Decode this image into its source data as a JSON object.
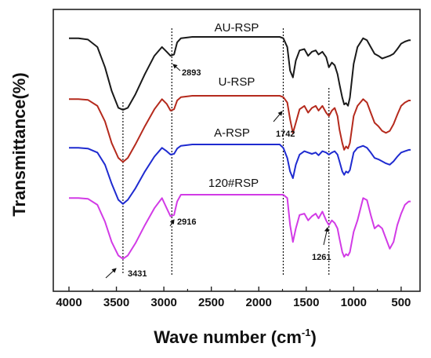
{
  "chart_data": {
    "type": "line",
    "xlabel": "Wave number (cm",
    "xlabel_sup": "-1",
    "xlabel_close": ")",
    "ylabel": "Transmittance(%)",
    "xlim": [
      4000,
      400
    ],
    "xticks": [
      "4000",
      "3500",
      "3000",
      "2500",
      "2000",
      "1500",
      "1000",
      "500"
    ],
    "x_reversed": true,
    "grid": false,
    "y_tick_labels": false,
    "series": [
      {
        "name": "AU-RSP",
        "color": "#d23be6",
        "offset": 3,
        "x": [
          4000,
          3900,
          3800,
          3700,
          3620,
          3550,
          3480,
          3431,
          3380,
          3300,
          3200,
          3100,
          3020,
          2970,
          2930,
          2893,
          2860,
          2820,
          2700,
          2400,
          2100,
          1900,
          1780,
          1742,
          1700,
          1670,
          1640,
          1610,
          1570,
          1520,
          1480,
          1440,
          1400,
          1370,
          1330,
          1290,
          1261,
          1230,
          1200,
          1170,
          1150,
          1120,
          1100,
          1080,
          1060,
          1040,
          1020,
          1000,
          960,
          900,
          860,
          820,
          780,
          740,
          700,
          660,
          620,
          580,
          540,
          500,
          460,
          420,
          400
        ],
        "values": [
          0.95,
          0.95,
          0.94,
          0.85,
          0.6,
          0.3,
          0.1,
          0.05,
          0.1,
          0.28,
          0.55,
          0.8,
          0.95,
          0.8,
          0.68,
          0.7,
          0.9,
          1.0,
          1.0,
          1.0,
          1.0,
          1.0,
          1.0,
          1.0,
          0.95,
          0.55,
          0.3,
          0.5,
          0.7,
          0.72,
          0.62,
          0.68,
          0.72,
          0.65,
          0.75,
          0.62,
          0.55,
          0.62,
          0.58,
          0.5,
          0.35,
          0.15,
          0.08,
          0.12,
          0.1,
          0.15,
          0.3,
          0.45,
          0.62,
          0.95,
          0.92,
          0.7,
          0.5,
          0.55,
          0.5,
          0.35,
          0.2,
          0.3,
          0.55,
          0.72,
          0.85,
          0.9,
          0.9
        ]
      },
      {
        "name": "U-RSP",
        "color": "#1f2bd0",
        "offset": 2,
        "x": [
          4000,
          3900,
          3800,
          3700,
          3620,
          3550,
          3480,
          3431,
          3380,
          3300,
          3200,
          3100,
          3020,
          2970,
          2930,
          2893,
          2860,
          2820,
          2700,
          2400,
          2100,
          1900,
          1780,
          1742,
          1700,
          1670,
          1640,
          1610,
          1570,
          1520,
          1480,
          1440,
          1400,
          1370,
          1330,
          1290,
          1261,
          1230,
          1200,
          1170,
          1150,
          1120,
          1100,
          1080,
          1060,
          1040,
          1020,
          1000,
          960,
          900,
          860,
          820,
          780,
          740,
          700,
          660,
          620,
          580,
          540,
          500,
          460,
          420,
          400
        ],
        "values": [
          0.95,
          0.95,
          0.94,
          0.88,
          0.7,
          0.42,
          0.18,
          0.12,
          0.18,
          0.35,
          0.6,
          0.82,
          0.95,
          0.9,
          0.85,
          0.86,
          0.94,
          0.98,
          1.0,
          1.0,
          1.0,
          1.0,
          1.0,
          0.95,
          0.8,
          0.6,
          0.5,
          0.7,
          0.85,
          0.9,
          0.88,
          0.86,
          0.88,
          0.84,
          0.9,
          0.88,
          0.85,
          0.88,
          0.9,
          0.85,
          0.75,
          0.6,
          0.55,
          0.6,
          0.58,
          0.62,
          0.75,
          0.88,
          0.95,
          0.98,
          0.95,
          0.88,
          0.8,
          0.78,
          0.75,
          0.72,
          0.7,
          0.75,
          0.82,
          0.88,
          0.9,
          0.92,
          0.92
        ]
      },
      {
        "name": "A-RSP",
        "color": "#b52a1d",
        "offset": 1,
        "x": [
          4000,
          3900,
          3800,
          3700,
          3620,
          3550,
          3480,
          3431,
          3380,
          3300,
          3200,
          3100,
          3020,
          2970,
          2930,
          2893,
          2860,
          2820,
          2700,
          2400,
          2100,
          1900,
          1780,
          1742,
          1700,
          1670,
          1640,
          1610,
          1570,
          1520,
          1480,
          1440,
          1400,
          1370,
          1330,
          1290,
          1261,
          1230,
          1200,
          1170,
          1150,
          1120,
          1100,
          1080,
          1060,
          1040,
          1020,
          1000,
          960,
          900,
          860,
          820,
          780,
          740,
          700,
          660,
          620,
          580,
          540,
          500,
          460,
          420,
          400
        ],
        "values": [
          0.95,
          0.95,
          0.94,
          0.85,
          0.62,
          0.3,
          0.08,
          0.02,
          0.08,
          0.28,
          0.55,
          0.8,
          0.95,
          0.88,
          0.78,
          0.8,
          0.93,
          0.98,
          1.0,
          1.0,
          1.0,
          1.0,
          1.0,
          0.98,
          0.9,
          0.65,
          0.45,
          0.6,
          0.8,
          0.85,
          0.75,
          0.82,
          0.85,
          0.78,
          0.85,
          0.75,
          0.7,
          0.78,
          0.82,
          0.7,
          0.5,
          0.3,
          0.2,
          0.25,
          0.22,
          0.3,
          0.5,
          0.7,
          0.85,
          0.95,
          0.9,
          0.75,
          0.6,
          0.55,
          0.48,
          0.45,
          0.48,
          0.58,
          0.72,
          0.85,
          0.9,
          0.93,
          0.93
        ]
      },
      {
        "name": "120#RSP",
        "color": "#1a1a1a",
        "offset": 0,
        "x": [
          4000,
          3900,
          3800,
          3700,
          3620,
          3550,
          3480,
          3431,
          3380,
          3300,
          3200,
          3100,
          3020,
          2970,
          2930,
          2893,
          2860,
          2820,
          2700,
          2400,
          2100,
          1900,
          1780,
          1742,
          1700,
          1670,
          1640,
          1610,
          1570,
          1520,
          1480,
          1440,
          1400,
          1370,
          1330,
          1290,
          1261,
          1230,
          1200,
          1170,
          1150,
          1120,
          1100,
          1080,
          1060,
          1040,
          1020,
          1000,
          960,
          900,
          860,
          820,
          780,
          740,
          700,
          660,
          620,
          580,
          540,
          500,
          460,
          420,
          400
        ],
        "values": [
          0.98,
          0.98,
          0.96,
          0.85,
          0.55,
          0.2,
          -0.05,
          -0.08,
          -0.05,
          0.15,
          0.45,
          0.72,
          0.85,
          0.78,
          0.72,
          0.74,
          0.92,
          0.98,
          1.0,
          1.0,
          1.0,
          1.0,
          1.0,
          0.98,
          0.85,
          0.5,
          0.4,
          0.65,
          0.8,
          0.82,
          0.72,
          0.78,
          0.8,
          0.74,
          0.78,
          0.7,
          0.55,
          0.62,
          0.58,
          0.45,
          0.3,
          0.1,
          0.0,
          0.02,
          -0.02,
          0.1,
          0.35,
          0.6,
          0.85,
          0.98,
          0.95,
          0.85,
          0.75,
          0.72,
          0.68,
          0.7,
          0.72,
          0.75,
          0.82,
          0.9,
          0.93,
          0.95,
          0.95
        ]
      }
    ],
    "vlines": [
      3431,
      2916,
      1742,
      1261
    ],
    "annotations": [
      {
        "text": "2893",
        "x": 2893,
        "series": 0,
        "dx": 10,
        "dy": 20
      },
      {
        "text": "1742",
        "x": 1742,
        "series": 1,
        "dx": -12,
        "dy": 30
      },
      {
        "text": "2916",
        "x": 2916,
        "series": 3,
        "dx": 2,
        "dy": 36
      },
      {
        "text": "1261",
        "x": 1261,
        "series": 3,
        "dx": -12,
        "dy": 56
      },
      {
        "text": "3431",
        "x": 3431,
        "series": 3,
        "dx": 0,
        "dy": 10
      }
    ]
  }
}
